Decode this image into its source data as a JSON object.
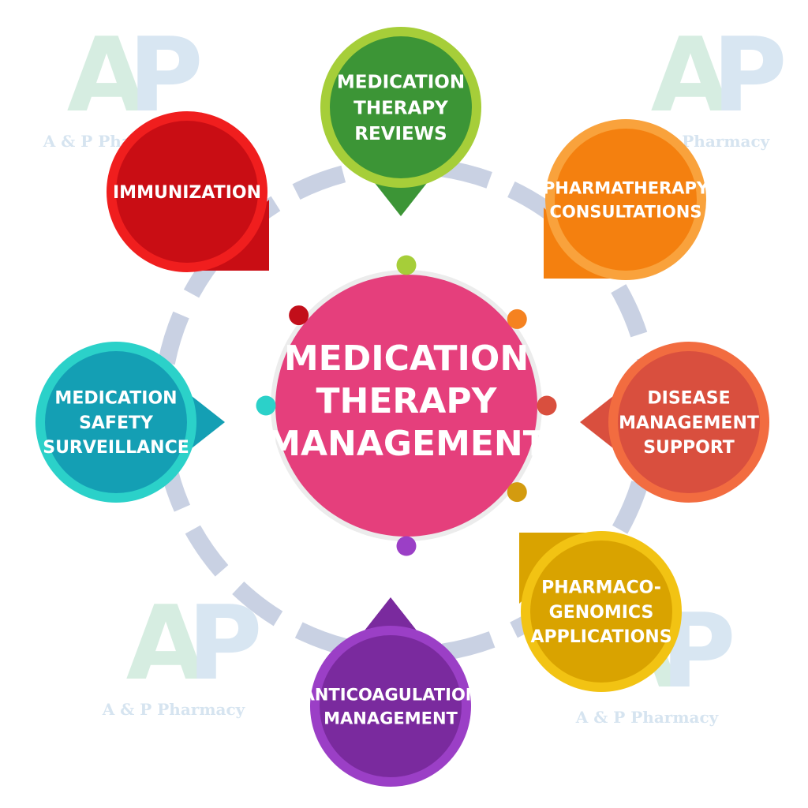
{
  "watermark": {
    "text": "A & P Pharmacy",
    "letters": "AP",
    "color_a": "#cfeadc",
    "color_p": "#d2e2f0",
    "text_color": "#cfe0ee"
  },
  "ring_color": "#c9d1e3",
  "center": {
    "lines": [
      "MEDICATION",
      "THERAPY",
      "MANAGEMENT"
    ],
    "color": "#e53f7c"
  },
  "nodes": [
    {
      "id": "medication-therapy-reviews",
      "lines": [
        "MEDICATION",
        "THERAPY",
        "REVIEWS"
      ],
      "inner": "#3c9536",
      "outer": "#a6ce39",
      "dot": "#a6ce39"
    },
    {
      "id": "pharmatherapy-consultations",
      "lines": [
        "PHARMATHERAPY",
        "CONSULTATIONS"
      ],
      "inner": "#f4800f",
      "outer": "#f9a23c",
      "dot": "#f58220"
    },
    {
      "id": "disease-management-support",
      "lines": [
        "DISEASE",
        "MANAGEMENT",
        "SUPPORT"
      ],
      "inner": "#d94f3e",
      "outer": "#f26c40",
      "dot": "#d94f3e"
    },
    {
      "id": "pharmacogenomics-applications",
      "lines": [
        "PHARMACO-",
        "GENOMICS",
        "APPLICATIONS"
      ],
      "inner": "#d9a300",
      "outer": "#f2c313",
      "dot": "#d39b0f"
    },
    {
      "id": "anticoagulation-management",
      "lines": [
        "ANTICOAGULATION",
        "MANAGEMENT"
      ],
      "inner": "#7a2a9e",
      "outer": "#9b3fc6",
      "dot": "#9b3fc6"
    },
    {
      "id": "medication-safety-surveillance",
      "lines": [
        "MEDICATION",
        "SAFETY",
        "SURVEILLANCE"
      ],
      "inner": "#149fb4",
      "outer": "#2bd1c9",
      "dot": "#2bd1c9"
    },
    {
      "id": "immunization",
      "lines": [
        "IMMUNIZATION"
      ],
      "inner": "#c90d14",
      "outer": "#f01e1e",
      "dot": "#c20e1a"
    }
  ]
}
